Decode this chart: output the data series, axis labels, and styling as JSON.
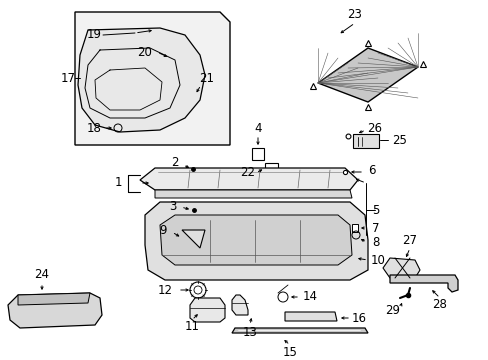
{
  "bg_color": "#ffffff",
  "line_color": "#000000",
  "figsize": [
    4.89,
    3.6
  ],
  "dpi": 100,
  "fontsize": 8.5
}
